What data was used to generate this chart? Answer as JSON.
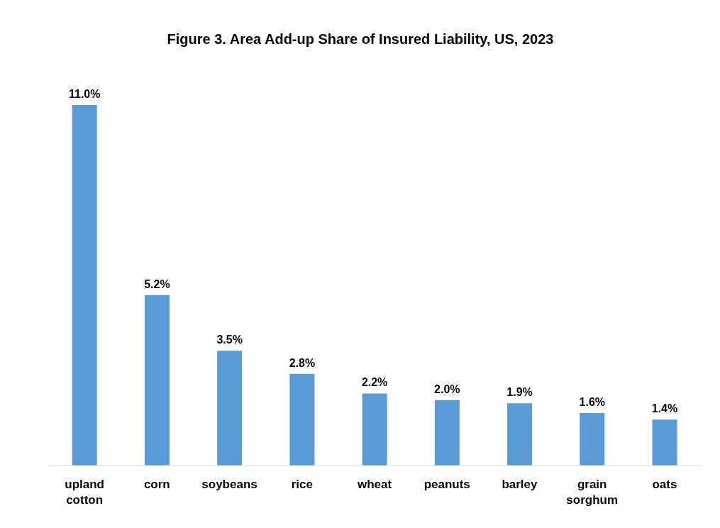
{
  "chart_data": {
    "type": "bar",
    "title": "Figure 3.  Area Add-up Share of Insured Liability, US, 2023",
    "categories": [
      "upland cotton",
      "corn",
      "soybeans",
      "rice",
      "wheat",
      "peanuts",
      "barley",
      "grain sorghum",
      "oats"
    ],
    "values": [
      11.0,
      5.2,
      3.5,
      2.8,
      2.2,
      2.0,
      1.9,
      1.6,
      1.4
    ],
    "value_labels": [
      "11.0%",
      "5.2%",
      "3.5%",
      "2.8%",
      "2.2%",
      "2.0%",
      "1.9%",
      "1.6%",
      "1.4%"
    ],
    "color": "#5b9bd5"
  }
}
